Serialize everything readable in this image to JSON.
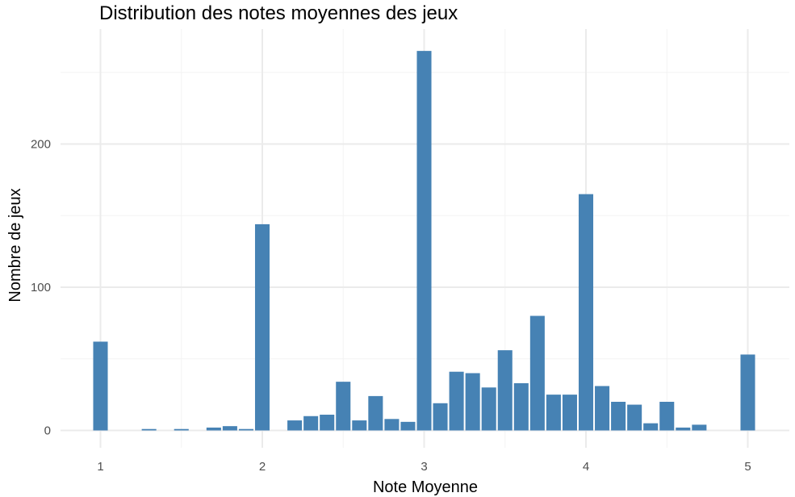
{
  "chart_data": {
    "type": "bar",
    "title": "Distribution des notes moyennes des jeux",
    "xlabel": "Note Moyenne",
    "ylabel": "Nombre de jeux",
    "xlim": [
      0.9,
      5.25
    ],
    "ylim": [
      -8,
      290
    ],
    "x_ticks": [
      1,
      2,
      3,
      4,
      5
    ],
    "x_tick_labels": [
      "1",
      "2",
      "3",
      "4",
      "5"
    ],
    "y_ticks": [
      0,
      100,
      200
    ],
    "y_tick_labels": [
      "0",
      "100",
      "200"
    ],
    "grid": true,
    "bar_width": 0.09,
    "bar_color": "#4682b4",
    "x": [
      1.0,
      1.1,
      1.2,
      1.3,
      1.4,
      1.5,
      1.6,
      1.7,
      1.8,
      1.9,
      2.0,
      2.1,
      2.2,
      2.3,
      2.4,
      2.5,
      2.6,
      2.7,
      2.8,
      2.9,
      3.0,
      3.1,
      3.2,
      3.3,
      3.4,
      3.5,
      3.6,
      3.7,
      3.8,
      3.9,
      4.0,
      4.1,
      4.2,
      4.3,
      4.4,
      4.5,
      4.6,
      4.7,
      4.8,
      4.9,
      5.0
    ],
    "values": [
      62,
      0,
      0,
      1,
      0,
      1,
      0,
      2,
      3,
      1,
      144,
      0,
      7,
      10,
      11,
      34,
      7,
      24,
      8,
      6,
      265,
      19,
      41,
      40,
      30,
      56,
      33,
      80,
      25,
      25,
      165,
      31,
      20,
      18,
      5,
      20,
      2,
      4,
      0,
      0,
      53
    ]
  }
}
